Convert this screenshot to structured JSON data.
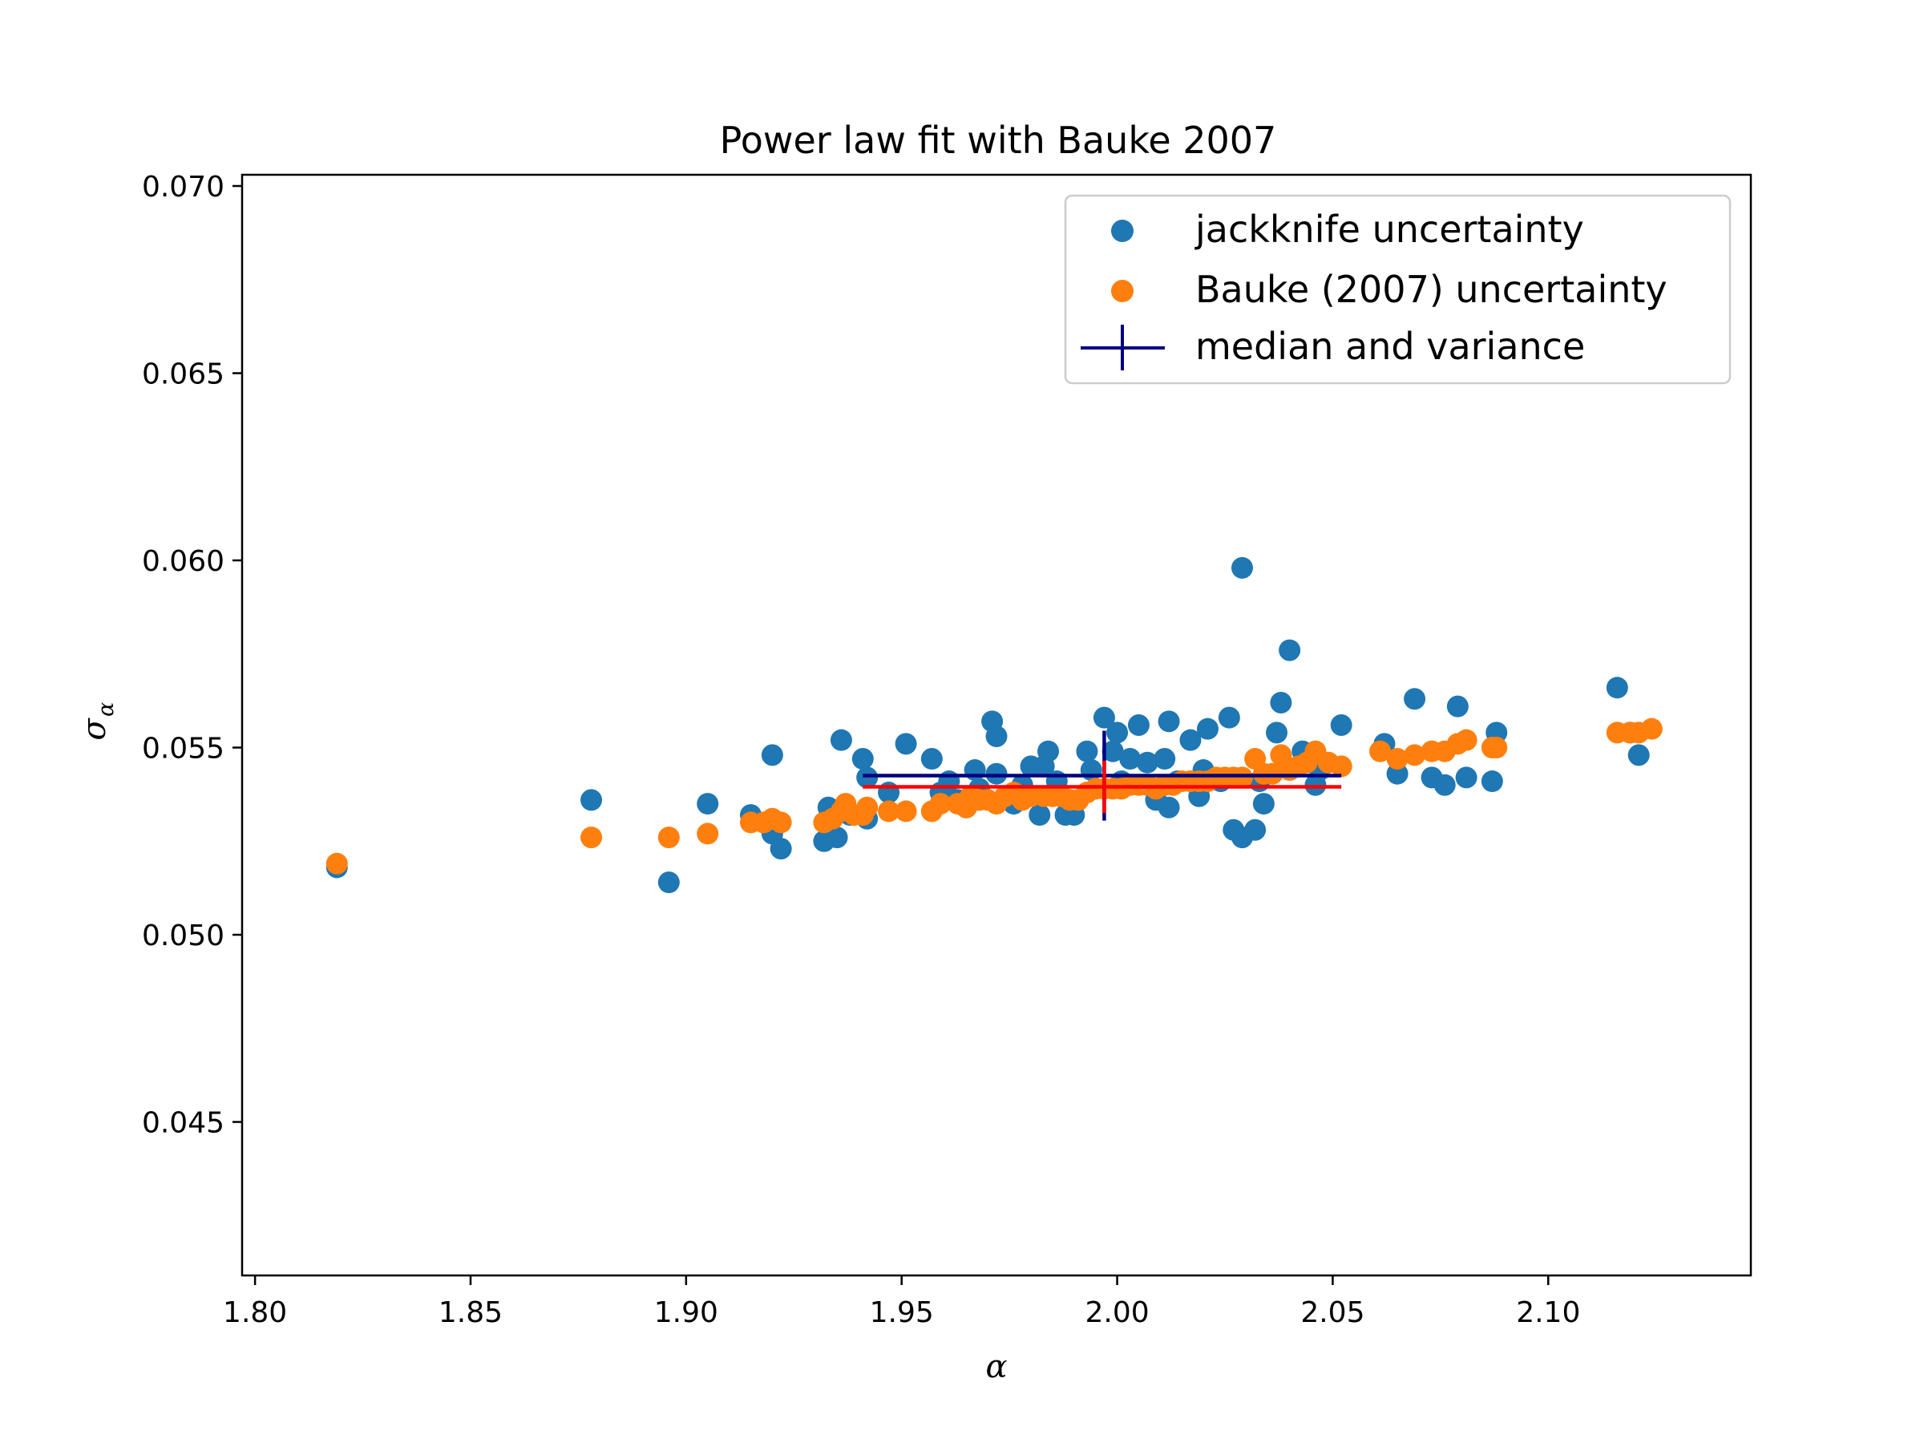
{
  "chart_data": {
    "type": "scatter",
    "title": "Power law fit with Bauke 2007",
    "xlabel": "α",
    "ylabel_main": "σ",
    "ylabel_sub": "α",
    "xlim": [
      1.797,
      2.147
    ],
    "ylim": [
      0.0409,
      0.0703
    ],
    "xticks": [
      1.8,
      1.85,
      1.9,
      1.95,
      2.0,
      2.05,
      2.1
    ],
    "xtick_labels": [
      "1.80",
      "1.85",
      "1.90",
      "1.95",
      "2.00",
      "2.05",
      "2.10"
    ],
    "yticks": [
      0.045,
      0.05,
      0.055,
      0.06,
      0.065,
      0.07
    ],
    "ytick_labels": [
      "0.045",
      "0.050",
      "0.055",
      "0.060",
      "0.065",
      "0.070"
    ],
    "grid": false,
    "legend_position": "top-right",
    "series": [
      {
        "name": "jackknife uncertainty",
        "color": "#1f77b4",
        "marker": "circle",
        "points": [
          [
            1.819,
            0.0518
          ],
          [
            1.878,
            0.0536
          ],
          [
            1.896,
            0.0514
          ],
          [
            1.905,
            0.0535
          ],
          [
            1.915,
            0.0532
          ],
          [
            1.918,
            0.053
          ],
          [
            1.92,
            0.0548
          ],
          [
            1.92,
            0.0527
          ],
          [
            1.922,
            0.0523
          ],
          [
            1.932,
            0.0525
          ],
          [
            1.933,
            0.0534
          ],
          [
            1.935,
            0.0526
          ],
          [
            1.936,
            0.0552
          ],
          [
            1.938,
            0.0532
          ],
          [
            1.941,
            0.0547
          ],
          [
            1.942,
            0.0542
          ],
          [
            1.942,
            0.0531
          ],
          [
            1.947,
            0.0538
          ],
          [
            1.951,
            0.0551
          ],
          [
            1.957,
            0.0547
          ],
          [
            1.959,
            0.0538
          ],
          [
            1.961,
            0.0541
          ],
          [
            1.963,
            0.0536
          ],
          [
            1.965,
            0.0534
          ],
          [
            1.967,
            0.0544
          ],
          [
            1.968,
            0.0539
          ],
          [
            1.971,
            0.0557
          ],
          [
            1.972,
            0.0553
          ],
          [
            1.972,
            0.0543
          ],
          [
            1.975,
            0.0536
          ],
          [
            1.976,
            0.0535
          ],
          [
            1.978,
            0.054
          ],
          [
            1.98,
            0.0545
          ],
          [
            1.982,
            0.0532
          ],
          [
            1.983,
            0.0545
          ],
          [
            1.984,
            0.0549
          ],
          [
            1.986,
            0.0541
          ],
          [
            1.988,
            0.0532
          ],
          [
            1.99,
            0.0532
          ],
          [
            1.993,
            0.0549
          ],
          [
            1.994,
            0.0544
          ],
          [
            1.997,
            0.0558
          ],
          [
            1.999,
            0.0549
          ],
          [
            2.0,
            0.0554
          ],
          [
            2.001,
            0.0541
          ],
          [
            2.003,
            0.0547
          ],
          [
            2.005,
            0.0556
          ],
          [
            2.007,
            0.0546
          ],
          [
            2.009,
            0.0536
          ],
          [
            2.011,
            0.0547
          ],
          [
            2.012,
            0.0557
          ],
          [
            2.012,
            0.0534
          ],
          [
            2.014,
            0.0541
          ],
          [
            2.017,
            0.0552
          ],
          [
            2.019,
            0.0537
          ],
          [
            2.02,
            0.0544
          ],
          [
            2.021,
            0.0555
          ],
          [
            2.024,
            0.0541
          ],
          [
            2.026,
            0.0558
          ],
          [
            2.027,
            0.0528
          ],
          [
            2.029,
            0.0526
          ],
          [
            2.029,
            0.0598
          ],
          [
            2.032,
            0.0528
          ],
          [
            2.033,
            0.0541
          ],
          [
            2.034,
            0.0535
          ],
          [
            2.037,
            0.0554
          ],
          [
            2.038,
            0.0562
          ],
          [
            2.04,
            0.0576
          ],
          [
            2.043,
            0.0549
          ],
          [
            2.046,
            0.054
          ],
          [
            2.047,
            0.0544
          ],
          [
            2.052,
            0.0556
          ],
          [
            2.062,
            0.0551
          ],
          [
            2.065,
            0.0543
          ],
          [
            2.069,
            0.0563
          ],
          [
            2.073,
            0.0542
          ],
          [
            2.076,
            0.054
          ],
          [
            2.079,
            0.0561
          ],
          [
            2.081,
            0.0542
          ],
          [
            2.087,
            0.0541
          ],
          [
            2.088,
            0.0554
          ],
          [
            2.116,
            0.0566
          ],
          [
            2.119,
            0.0554
          ],
          [
            2.121,
            0.0548
          ]
        ]
      },
      {
        "name": "Bauke (2007) uncertainty",
        "color": "#ff7f0e",
        "marker": "circle",
        "points": [
          [
            1.819,
            0.0519
          ],
          [
            1.878,
            0.0526
          ],
          [
            1.896,
            0.0526
          ],
          [
            1.905,
            0.0527
          ],
          [
            1.915,
            0.053
          ],
          [
            1.918,
            0.053
          ],
          [
            1.92,
            0.0531
          ],
          [
            1.922,
            0.053
          ],
          [
            1.932,
            0.053
          ],
          [
            1.934,
            0.0531
          ],
          [
            1.936,
            0.0533
          ],
          [
            1.937,
            0.0535
          ],
          [
            1.939,
            0.0532
          ],
          [
            1.941,
            0.0532
          ],
          [
            1.942,
            0.0534
          ],
          [
            1.947,
            0.0533
          ],
          [
            1.951,
            0.0533
          ],
          [
            1.957,
            0.0533
          ],
          [
            1.959,
            0.0535
          ],
          [
            1.963,
            0.0535
          ],
          [
            1.965,
            0.0534
          ],
          [
            1.966,
            0.0537
          ],
          [
            1.968,
            0.0536
          ],
          [
            1.97,
            0.0536
          ],
          [
            1.972,
            0.0535
          ],
          [
            1.974,
            0.0537
          ],
          [
            1.976,
            0.0538
          ],
          [
            1.978,
            0.0536
          ],
          [
            1.98,
            0.0537
          ],
          [
            1.983,
            0.0537
          ],
          [
            1.985,
            0.0537
          ],
          [
            1.987,
            0.0537
          ],
          [
            1.989,
            0.0536
          ],
          [
            1.991,
            0.0536
          ],
          [
            1.993,
            0.0538
          ],
          [
            1.995,
            0.0539
          ],
          [
            1.997,
            0.0539
          ],
          [
            1.999,
            0.0539
          ],
          [
            2.001,
            0.0539
          ],
          [
            2.003,
            0.054
          ],
          [
            2.005,
            0.054
          ],
          [
            2.007,
            0.054
          ],
          [
            2.009,
            0.0539
          ],
          [
            2.011,
            0.054
          ],
          [
            2.013,
            0.054
          ],
          [
            2.015,
            0.0541
          ],
          [
            2.017,
            0.0541
          ],
          [
            2.019,
            0.0541
          ],
          [
            2.021,
            0.0541
          ],
          [
            2.023,
            0.0542
          ],
          [
            2.025,
            0.0542
          ],
          [
            2.027,
            0.0542
          ],
          [
            2.029,
            0.0542
          ],
          [
            2.032,
            0.0547
          ],
          [
            2.034,
            0.0543
          ],
          [
            2.036,
            0.0543
          ],
          [
            2.038,
            0.0548
          ],
          [
            2.04,
            0.0544
          ],
          [
            2.042,
            0.0545
          ],
          [
            2.044,
            0.0546
          ],
          [
            2.046,
            0.0549
          ],
          [
            2.049,
            0.0546
          ],
          [
            2.052,
            0.0545
          ],
          [
            2.061,
            0.0549
          ],
          [
            2.065,
            0.0547
          ],
          [
            2.069,
            0.0548
          ],
          [
            2.073,
            0.0549
          ],
          [
            2.076,
            0.0549
          ],
          [
            2.079,
            0.0551
          ],
          [
            2.081,
            0.0552
          ],
          [
            2.087,
            0.055
          ],
          [
            2.088,
            0.055
          ],
          [
            2.116,
            0.0554
          ],
          [
            2.119,
            0.0554
          ],
          [
            2.121,
            0.0554
          ],
          [
            2.124,
            0.0555
          ]
        ]
      }
    ],
    "error_markers": [
      {
        "name": "median and variance",
        "color": "#000080",
        "center": [
          1.997,
          0.05425
        ],
        "x_range": [
          1.941,
          2.052
        ],
        "y_range": [
          0.05305,
          0.05545
        ]
      },
      {
        "name": "",
        "color": "#ff0000",
        "center": [
          1.997,
          0.05395
        ],
        "x_range": [
          1.941,
          2.052
        ],
        "y_range": [
          0.05325,
          0.05465
        ]
      }
    ]
  }
}
